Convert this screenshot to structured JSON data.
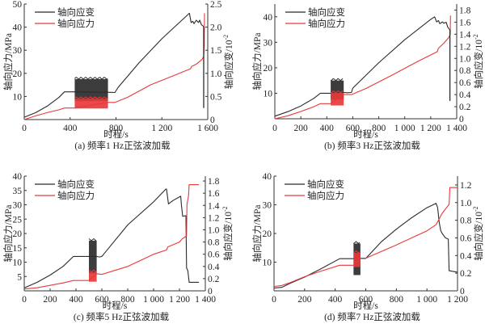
{
  "figure": {
    "panels_layout": "2x2 grid"
  },
  "chart_data": [
    {
      "type": "line",
      "panel": "a",
      "caption": "(a)  频率1 Hz正弦波加载",
      "xlabel": "时程/s",
      "ylabel_left": "轴向应力/MPa",
      "ylabel_right": "轴向应变/10",
      "ylabel_right_exponent": "-2",
      "xlim": [
        0,
        1600
      ],
      "ylim_left": [
        0,
        50
      ],
      "ylim_right": [
        0,
        2.5
      ],
      "x_ticks": [
        0,
        400,
        800,
        1200,
        1600
      ],
      "x_tick_labels": [
        "0",
        "400",
        "800",
        "1 200",
        "1 600"
      ],
      "y_left_ticks": [
        10,
        20,
        30,
        40,
        50
      ],
      "y_left_tick_labels": [
        "10",
        "20",
        "30",
        "40",
        "50"
      ],
      "y_right_ticks": [
        0,
        0.5,
        1.0,
        1.5,
        2.0,
        2.5
      ],
      "y_right_tick_labels": [
        "0",
        "0.5",
        "1.0",
        "1.5",
        "2.0",
        "2.5"
      ],
      "legend": {
        "placement": "top-left",
        "entries": [
          "轴向应变",
          "轴向应力"
        ]
      },
      "series": [
        {
          "name": "轴向应变",
          "color": "#2b2b2b",
          "axis": "left",
          "points": [
            [
              0,
              1
            ],
            [
              100,
              3
            ],
            [
              200,
              5.8
            ],
            [
              300,
              9.5
            ],
            [
              350,
              12
            ],
            [
              420,
              12
            ],
            [
              440,
              12
            ],
            [
              760,
              11.8
            ],
            [
              790,
              11.7
            ],
            [
              820,
              14
            ],
            [
              1000,
              24.5
            ],
            [
              1200,
              35
            ],
            [
              1440,
              46
            ],
            [
              1455,
              42
            ],
            [
              1470,
              42.5
            ],
            [
              1480,
              41.5
            ],
            [
              1500,
              43
            ],
            [
              1520,
              42
            ],
            [
              1530,
              43
            ],
            [
              1545,
              41
            ],
            [
              1560,
              40.5
            ],
            [
              1565,
              40
            ]
          ],
          "oscillation": {
            "x_range": [
              440,
              730
            ],
            "lower": 8,
            "upper": 17.5
          }
        },
        {
          "name": "轴向应力",
          "color": "#e8393b",
          "axis": "right",
          "points": [
            [
              0,
              0
            ],
            [
              100,
              0.08
            ],
            [
              200,
              0.15
            ],
            [
              300,
              0.21
            ],
            [
              350,
              0.25
            ],
            [
              440,
              0.25
            ],
            [
              730,
              0.37
            ],
            [
              790,
              0.37
            ],
            [
              900,
              0.48
            ],
            [
              1100,
              0.75
            ],
            [
              1300,
              0.95
            ],
            [
              1450,
              1.1
            ],
            [
              1460,
              1.15
            ],
            [
              1500,
              1.2
            ],
            [
              1550,
              1.3
            ],
            [
              1565,
              1.37
            ],
            [
              1570,
              1.6
            ],
            [
              1572,
              2.3
            ]
          ],
          "oscillation": {
            "x_range": [
              440,
              730
            ],
            "lower": 0.24,
            "upper": 0.45
          }
        },
        {
          "name": "failure-drop",
          "color": "#2b2b2b",
          "axis": "left",
          "points": [
            [
              1565,
              40
            ],
            [
              1565,
              5
            ]
          ]
        }
      ]
    },
    {
      "type": "line",
      "panel": "b",
      "caption": "(b)  频率3 Hz正弦波加载",
      "xlabel": "时程/s",
      "ylabel_left": "轴向应力/MPa",
      "ylabel_right": "轴向应变/10",
      "ylabel_right_exponent": "-2",
      "xlim": [
        0,
        1400
      ],
      "ylim_left": [
        0,
        45
      ],
      "ylim_right": [
        0,
        1.9
      ],
      "x_ticks": [
        0,
        200,
        400,
        600,
        800,
        1000,
        1200,
        1400
      ],
      "x_tick_labels": [
        "0",
        "200",
        "400",
        "600",
        "800",
        "1 000",
        "1 200",
        "1 400"
      ],
      "y_left_ticks": [
        10,
        20,
        30,
        40
      ],
      "y_left_tick_labels": [
        "10",
        "20",
        "30",
        "40"
      ],
      "y_right_ticks": [
        0,
        0.2,
        0.4,
        0.6,
        0.8,
        1.0,
        1.2,
        1.4,
        1.6,
        1.8
      ],
      "y_right_tick_labels": [
        "0",
        "0.2",
        "0.4",
        "0.6",
        "0.8",
        "1.0",
        "1.2",
        "1.4",
        "1.6",
        "1.8"
      ],
      "legend": {
        "placement": "top-left",
        "entries": [
          "轴向应变",
          "轴向应力"
        ]
      },
      "series": [
        {
          "name": "轴向应变",
          "color": "#2b2b2b",
          "axis": "left",
          "points": [
            [
              0,
              1
            ],
            [
              100,
              2.8
            ],
            [
              200,
              5
            ],
            [
              300,
              8
            ],
            [
              350,
              10
            ],
            [
              430,
              10
            ],
            [
              530,
              10.3
            ],
            [
              560,
              10.2
            ],
            [
              590,
              10.3
            ],
            [
              600,
              12
            ],
            [
              800,
              22
            ],
            [
              1000,
              31
            ],
            [
              1200,
              39
            ],
            [
              1230,
              40
            ],
            [
              1245,
              38
            ],
            [
              1260,
              38.5
            ],
            [
              1270,
              37.3
            ],
            [
              1290,
              38
            ],
            [
              1300,
              37.5
            ],
            [
              1320,
              37.8
            ],
            [
              1330,
              36
            ],
            [
              1345,
              35
            ]
          ],
          "oscillation": {
            "x_range": [
              430,
              530
            ],
            "lower": 7.5,
            "upper": 15
          }
        },
        {
          "name": "轴向应力",
          "color": "#e8393b",
          "axis": "right",
          "points": [
            [
              0,
              0
            ],
            [
              100,
              0.05
            ],
            [
              200,
              0.12
            ],
            [
              300,
              0.2
            ],
            [
              350,
              0.25
            ],
            [
              430,
              0.25
            ],
            [
              530,
              0.4
            ],
            [
              590,
              0.4
            ],
            [
              700,
              0.5
            ],
            [
              900,
              0.72
            ],
            [
              1100,
              0.95
            ],
            [
              1250,
              1.11
            ],
            [
              1260,
              1.17
            ],
            [
              1300,
              1.25
            ],
            [
              1340,
              1.35
            ],
            [
              1350,
              1.4
            ],
            [
              1352,
              1.71
            ]
          ],
          "oscillation": {
            "x_range": [
              430,
              530
            ],
            "lower": 0.22,
            "upper": 0.43
          }
        },
        {
          "name": "failure-drop",
          "color": "#2b2b2b",
          "axis": "left",
          "points": [
            [
              1348,
              35
            ],
            [
              1348,
              7
            ]
          ]
        }
      ]
    },
    {
      "type": "line",
      "panel": "c",
      "caption": "(c)  频率5 Hz正弦波加载",
      "xlabel": "时程/s",
      "ylabel_left": "轴向应力/MPa",
      "ylabel_right": "轴向应变/10",
      "ylabel_right_exponent": "-2",
      "xlim": [
        0,
        1400
      ],
      "ylim_left": [
        0,
        40
      ],
      "ylim_right": [
        0,
        1.88
      ],
      "x_ticks": [
        0,
        200,
        400,
        600,
        800,
        1000,
        1200,
        1400
      ],
      "x_tick_labels": [
        "0",
        "200",
        "400",
        "600",
        "800",
        "1 000",
        "1 200",
        "1 400"
      ],
      "y_left_ticks": [
        5,
        10,
        15,
        20,
        25,
        30,
        35,
        40
      ],
      "y_left_tick_labels": [
        "5",
        "10",
        "15",
        "20",
        "25",
        "30",
        "35",
        "40"
      ],
      "y_right_ticks": [
        0,
        0.2,
        0.4,
        0.6,
        0.8,
        1.0,
        1.2,
        1.4,
        1.6,
        1.8
      ],
      "y_right_tick_labels": [
        "0",
        "0.2",
        "0.4",
        "0.6",
        "0.8",
        "1.0",
        "1.2",
        "1.4",
        "1.6",
        "1.8"
      ],
      "legend": {
        "placement": "top-left",
        "entries": [
          "轴向应变",
          "轴向应力"
        ]
      },
      "series": [
        {
          "name": "轴向应变",
          "color": "#2b2b2b",
          "axis": "left",
          "points": [
            [
              0,
              1
            ],
            [
              100,
              3
            ],
            [
              200,
              5.5
            ],
            [
              300,
              8.5
            ],
            [
              380,
              12
            ],
            [
              500,
              12
            ],
            [
              560,
              12
            ],
            [
              580,
              11.8
            ],
            [
              600,
              12
            ],
            [
              800,
              23
            ],
            [
              1000,
              31
            ],
            [
              1095,
              35.5
            ],
            [
              1100,
              35.5
            ],
            [
              1115,
              30.3
            ],
            [
              1150,
              31.5
            ],
            [
              1210,
              33
            ],
            [
              1215,
              30
            ],
            [
              1225,
              26
            ],
            [
              1250,
              26.2
            ],
            [
              1255,
              8
            ],
            [
              1265,
              7
            ],
            [
              1275,
              3
            ],
            [
              1350,
              3
            ]
          ],
          "oscillation": {
            "x_range": [
              500,
              560
            ],
            "lower": 6,
            "upper": 17.5
          }
        },
        {
          "name": "轴向应力",
          "color": "#e8393b",
          "axis": "right",
          "points": [
            [
              0,
              0.03
            ],
            [
              100,
              0.05
            ],
            [
              200,
              0.09
            ],
            [
              300,
              0.13
            ],
            [
              380,
              0.17
            ],
            [
              500,
              0.17
            ],
            [
              560,
              0.28
            ],
            [
              600,
              0.27
            ],
            [
              800,
              0.4
            ],
            [
              1000,
              0.6
            ],
            [
              1100,
              0.67
            ],
            [
              1110,
              0.72
            ],
            [
              1200,
              0.8
            ],
            [
              1220,
              0.85
            ],
            [
              1255,
              0.9
            ],
            [
              1258,
              1.42
            ],
            [
              1270,
              1.55
            ],
            [
              1275,
              1.74
            ],
            [
              1350,
              1.74
            ]
          ],
          "oscillation": {
            "x_range": [
              500,
              560
            ],
            "lower": 0.15,
            "upper": 0.31
          }
        }
      ]
    },
    {
      "type": "line",
      "panel": "d",
      "caption": "(d)  频率7 Hz正弦波加载",
      "xlabel": "时程/s",
      "ylabel_left": "轴向应力/MPa",
      "ylabel_right": "轴向应变/10",
      "ylabel_right_exponent": "-2",
      "xlim": [
        0,
        1200
      ],
      "ylim_left": [
        0,
        40
      ],
      "ylim_right": [
        0,
        1.3
      ],
      "x_ticks": [
        0,
        200,
        400,
        600,
        800,
        1000,
        1200
      ],
      "x_tick_labels": [
        "0",
        "200",
        "400",
        "600",
        "800",
        "1 000",
        "1 200"
      ],
      "y_left_ticks": [
        10,
        20,
        30,
        40
      ],
      "y_left_tick_labels": [
        "10",
        "20",
        "30",
        "40"
      ],
      "y_right_ticks": [
        0,
        0.2,
        0.4,
        0.6,
        0.8,
        1.0,
        1.2
      ],
      "y_right_tick_labels": [
        "0",
        "0.2",
        "0.4",
        "0.6",
        "0.8",
        "1.0",
        "1.2"
      ],
      "legend": {
        "placement": "top-left",
        "entries": [
          "轴向应变",
          "轴向应力"
        ]
      },
      "series": [
        {
          "name": "轴向应变",
          "color": "#2b2b2b",
          "axis": "left",
          "points": [
            [
              0,
              1
            ],
            [
              50,
              1.2
            ],
            [
              100,
              2.5
            ],
            [
              200,
              4.8
            ],
            [
              300,
              7.5
            ],
            [
              430,
              11.2
            ],
            [
              520,
              11.2
            ],
            [
              570,
              11.3
            ],
            [
              600,
              11.3
            ],
            [
              700,
              17
            ],
            [
              800,
              21.5
            ],
            [
              900,
              25.5
            ],
            [
              1000,
              29
            ],
            [
              1060,
              30.5
            ],
            [
              1070,
              29
            ],
            [
              1080,
              24
            ],
            [
              1090,
              21
            ],
            [
              1100,
              20
            ],
            [
              1120,
              18.5
            ],
            [
              1140,
              18
            ],
            [
              1145,
              7
            ],
            [
              1200,
              6.5
            ]
          ],
          "oscillation": {
            "x_range": [
              520,
              565
            ],
            "lower": 5.5,
            "upper": 16.5
          }
        },
        {
          "name": "轴向应力",
          "color": "#e8393b",
          "axis": "right",
          "points": [
            [
              0,
              0.05
            ],
            [
              50,
              0.06
            ],
            [
              100,
              0.09
            ],
            [
              200,
              0.16
            ],
            [
              300,
              0.22
            ],
            [
              430,
              0.29
            ],
            [
              520,
              0.29
            ],
            [
              565,
              0.37
            ],
            [
              600,
              0.37
            ],
            [
              800,
              0.52
            ],
            [
              1000,
              0.68
            ],
            [
              1060,
              0.75
            ],
            [
              1100,
              0.88
            ],
            [
              1145,
              0.98
            ],
            [
              1150,
              1.17
            ],
            [
              1200,
              1.17
            ]
          ],
          "oscillation": {
            "x_range": [
              520,
              565
            ],
            "lower": 0.27,
            "upper": 0.43
          }
        }
      ]
    }
  ]
}
